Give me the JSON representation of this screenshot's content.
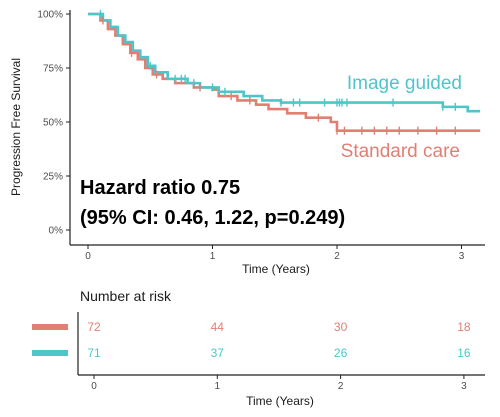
{
  "chart_data": {
    "type": "line",
    "subtype": "kaplan-meier step plot with number-at-risk table",
    "ylabel": "Progression Free Survival",
    "xlabel": "Time (Years)",
    "xlim": [
      0,
      3.15
    ],
    "ylim": [
      0,
      1
    ],
    "x_ticks": [
      "0",
      "1",
      "2",
      "3"
    ],
    "y_ticks": [
      "0%",
      "25%",
      "50%",
      "75%",
      "100%"
    ],
    "grid": false,
    "series": [
      {
        "name": "Image guided",
        "color": "#4ec6c9",
        "steps": [
          [
            0,
            1.0
          ],
          [
            0.12,
            0.97
          ],
          [
            0.18,
            0.94
          ],
          [
            0.24,
            0.9
          ],
          [
            0.3,
            0.87
          ],
          [
            0.36,
            0.83
          ],
          [
            0.42,
            0.8
          ],
          [
            0.48,
            0.76
          ],
          [
            0.54,
            0.73
          ],
          [
            0.64,
            0.7
          ],
          [
            0.8,
            0.68
          ],
          [
            0.9,
            0.66
          ],
          [
            1.05,
            0.64
          ],
          [
            1.25,
            0.62
          ],
          [
            1.4,
            0.6
          ],
          [
            1.55,
            0.59
          ],
          [
            2.85,
            0.57
          ],
          [
            3.05,
            0.55
          ],
          [
            3.15,
            0.55
          ]
        ],
        "censor_times": [
          0.1,
          0.5,
          0.7,
          0.75,
          0.78,
          0.85,
          1.0,
          1.1,
          1.55,
          1.65,
          1.7,
          1.9,
          2.0,
          2.02,
          2.04,
          2.08,
          2.45,
          2.85,
          2.95
        ]
      },
      {
        "name": "Standard care",
        "color": "#e17f72",
        "steps": [
          [
            0,
            1.0
          ],
          [
            0.1,
            0.97
          ],
          [
            0.16,
            0.93
          ],
          [
            0.22,
            0.9
          ],
          [
            0.28,
            0.86
          ],
          [
            0.34,
            0.82
          ],
          [
            0.4,
            0.79
          ],
          [
            0.46,
            0.75
          ],
          [
            0.52,
            0.72
          ],
          [
            0.6,
            0.7
          ],
          [
            0.7,
            0.68
          ],
          [
            0.85,
            0.66
          ],
          [
            1.0,
            0.65
          ],
          [
            1.05,
            0.62
          ],
          [
            1.2,
            0.6
          ],
          [
            1.35,
            0.58
          ],
          [
            1.45,
            0.56
          ],
          [
            1.6,
            0.54
          ],
          [
            1.75,
            0.52
          ],
          [
            1.95,
            0.5
          ],
          [
            2.0,
            0.46
          ],
          [
            3.15,
            0.46
          ]
        ],
        "censor_times": [
          0.12,
          0.35,
          0.55,
          0.9,
          1.15,
          1.3,
          1.85,
          2.0,
          2.06,
          2.2,
          2.3,
          2.4,
          2.5,
          2.65,
          2.8,
          2.95
        ]
      }
    ],
    "annotations": {
      "hazard_line1": "Hazard ratio 0.75",
      "hazard_line2": "(95% CI: 0.46, 1.22, p=0.249)"
    },
    "risk_table": {
      "title": "Number at risk",
      "xlabel": "Time (Years)",
      "x_ticks": [
        "0",
        "1",
        "2",
        "3"
      ],
      "rows": [
        {
          "color": "#e17f72",
          "values": [
            "72",
            "44",
            "30",
            "18"
          ]
        },
        {
          "color": "#4ec6c9",
          "values": [
            "71",
            "37",
            "26",
            "16"
          ]
        }
      ]
    }
  }
}
